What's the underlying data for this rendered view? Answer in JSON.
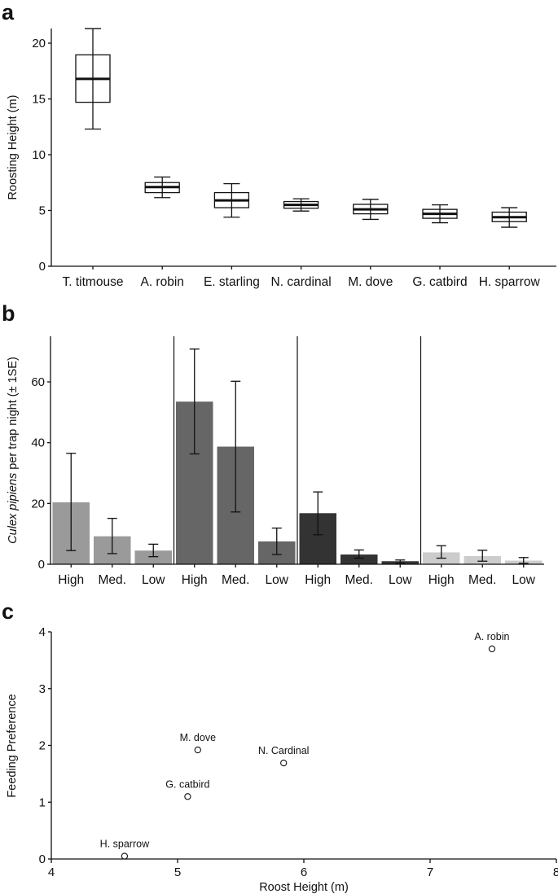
{
  "chart_data": [
    {
      "panel": "a",
      "type": "box",
      "ylabel": "Roosting Height (m)",
      "ylim": [
        0,
        21.5
      ],
      "yticks": [
        0,
        5,
        10,
        15,
        20
      ],
      "grid": false,
      "categories": [
        "T. titmouse",
        "A. robin",
        "E. starling",
        "N. cardinal",
        "M. dove",
        "G. catbird",
        "H. sparrow"
      ],
      "boxes": [
        {
          "min": 12.3,
          "q1": 14.7,
          "median": 16.8,
          "q3": 18.95,
          "max": 21.3
        },
        {
          "min": 6.15,
          "q1": 6.6,
          "median": 7.1,
          "q3": 7.5,
          "max": 8.0
        },
        {
          "min": 4.4,
          "q1": 5.25,
          "median": 5.9,
          "q3": 6.6,
          "max": 7.4
        },
        {
          "min": 4.95,
          "q1": 5.2,
          "median": 5.5,
          "q3": 5.8,
          "max": 6.05
        },
        {
          "min": 4.2,
          "q1": 4.7,
          "median": 5.1,
          "q3": 5.55,
          "max": 6.0
        },
        {
          "min": 3.9,
          "q1": 4.3,
          "median": 4.7,
          "q3": 5.1,
          "max": 5.5
        },
        {
          "min": 3.5,
          "q1": 4.0,
          "median": 4.4,
          "q3": 4.85,
          "max": 5.25
        }
      ]
    },
    {
      "panel": "b",
      "type": "bar",
      "ylabel_italic": "Culex pipiens",
      "ylabel_rest": " per trap night (± 1SE)",
      "ylim": [
        0,
        75
      ],
      "yticks": [
        0,
        20,
        40,
        60
      ],
      "grid": false,
      "categories": [
        "High",
        "Med.",
        "Low",
        "High",
        "Med.",
        "Low",
        "High",
        "Med.",
        "Low",
        "High",
        "Med.",
        "Low"
      ],
      "groups": [
        {
          "color": "#9a9a9a",
          "values": [
            20.4,
            9.2,
            4.5
          ],
          "err_low": [
            4.5,
            3.5,
            2.5
          ],
          "err_high": [
            36.5,
            15.1,
            6.6
          ]
        },
        {
          "color": "#666666",
          "values": [
            53.5,
            38.7,
            7.5
          ],
          "err_low": [
            36.3,
            17.2,
            3.2
          ],
          "err_high": [
            70.8,
            60.2,
            11.9
          ]
        },
        {
          "color": "#333333",
          "values": [
            16.8,
            3.2,
            1.0
          ],
          "err_low": [
            9.7,
            2.0,
            0.4
          ],
          "err_high": [
            23.8,
            4.7,
            1.4
          ]
        },
        {
          "color": "#cccccc",
          "values": [
            3.9,
            2.7,
            1.2
          ],
          "err_low": [
            2.0,
            1.0,
            0.3
          ],
          "err_high": [
            6.1,
            4.6,
            2.2
          ]
        }
      ]
    },
    {
      "panel": "c",
      "type": "scatter",
      "xlabel": "Roost Height (m)",
      "ylabel": "Feeding Preference",
      "xlim": [
        4,
        8
      ],
      "ylim": [
        0,
        4
      ],
      "xticks": [
        4,
        5,
        6,
        7,
        8
      ],
      "yticks": [
        0,
        1,
        2,
        3,
        4
      ],
      "grid": false,
      "points": [
        {
          "label": "A. robin",
          "x": 7.49,
          "y": 3.7
        },
        {
          "label": "M. dove",
          "x": 5.16,
          "y": 1.92
        },
        {
          "label": "N. Cardinal",
          "x": 5.84,
          "y": 1.69
        },
        {
          "label": "G. catbird",
          "x": 5.08,
          "y": 1.1
        },
        {
          "label": "H. sparrow",
          "x": 4.58,
          "y": 0.05
        }
      ]
    }
  ]
}
